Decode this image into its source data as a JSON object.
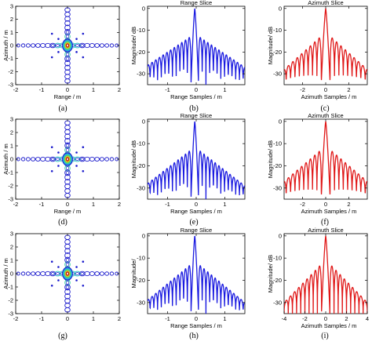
{
  "chart_data": [
    {
      "id": "a",
      "caption": "(a)",
      "type": "heatmap",
      "kind": "contour",
      "title": "",
      "xlabel": "Range / m",
      "ylabel": "Azimuth / m",
      "xticks": [
        "-2",
        "-1",
        "0",
        "1",
        "2"
      ],
      "yticks": [
        "3",
        "2",
        "1",
        "0",
        "-1",
        "-2",
        "-3"
      ],
      "xlim": [
        -2,
        2
      ],
      "ylim": [
        -3,
        3
      ]
    },
    {
      "id": "b",
      "caption": "(b)",
      "type": "line",
      "title": "Range Slice",
      "xlabel": "Range Samples / m",
      "ylabel": "Magnitude/ dB",
      "xticks": [
        "-1",
        "0",
        "1"
      ],
      "yticks": [
        "0",
        "-10",
        "-20",
        "-30"
      ],
      "xlim": [
        -1.7,
        1.7
      ],
      "ylim": [
        -35,
        1
      ],
      "series": [
        {
          "color": "#1a1ae0",
          "peak_x": -0.05,
          "lobe_spacing": 0.13,
          "envelope_db_at_edge": -27,
          "floor_db": -35
        }
      ]
    },
    {
      "id": "c",
      "caption": "(c)",
      "type": "line",
      "title": "Azimuth Slice",
      "xlabel": "Azimuth Samples / m",
      "ylabel": "Magnitude/ dB",
      "xticks": [
        "-2",
        "0",
        "2"
      ],
      "yticks": [
        "0",
        "-10",
        "-20",
        "-30"
      ],
      "xlim": [
        -3.6,
        3.6
      ],
      "ylim": [
        -35,
        1
      ],
      "series": [
        {
          "color": "#e01818",
          "peak_x": 0,
          "lobe_spacing": 0.38,
          "envelope_db_at_edge": -28,
          "floor_db": -35
        }
      ]
    },
    {
      "id": "d",
      "caption": "(d)",
      "type": "heatmap",
      "kind": "contour",
      "title": "",
      "xlabel": "Range / m",
      "ylabel": "Azimuth / m",
      "xticks": [
        "-2",
        "-1",
        "0",
        "1",
        "2"
      ],
      "yticks": [
        "3",
        "2",
        "1",
        "0",
        "-1",
        "-2",
        "-3"
      ],
      "xlim": [
        -2,
        2
      ],
      "ylim": [
        -3,
        3
      ]
    },
    {
      "id": "e",
      "caption": "(e)",
      "type": "line",
      "title": "Range Slice",
      "xlabel": "Range Samples / m",
      "ylabel": "Magnitude/ dB",
      "xticks": [
        "-1",
        "0",
        "1"
      ],
      "yticks": [
        "0",
        "-10",
        "-20",
        "-30"
      ],
      "xlim": [
        -1.7,
        1.7
      ],
      "ylim": [
        -35,
        1
      ],
      "series": [
        {
          "color": "#1a1ae0",
          "peak_x": -0.05,
          "lobe_spacing": 0.13,
          "envelope_db_at_edge": -29,
          "floor_db": -35
        }
      ]
    },
    {
      "id": "f",
      "caption": "(f)",
      "type": "line",
      "title": "Azimuth Slice",
      "xlabel": "Azimuth Samples / m",
      "ylabel": "Magnitude/ dB",
      "xticks": [
        "-2",
        "0",
        "2"
      ],
      "yticks": [
        "0",
        "-10",
        "-20",
        "-30"
      ],
      "xlim": [
        -3.6,
        3.6
      ],
      "ylim": [
        -35,
        1
      ],
      "series": [
        {
          "color": "#e01818",
          "peak_x": 0,
          "lobe_spacing": 0.38,
          "envelope_db_at_edge": -27,
          "floor_db": -35
        }
      ]
    },
    {
      "id": "g",
      "caption": "(g)",
      "type": "heatmap",
      "kind": "contour",
      "title": "",
      "xlabel": "",
      "ylabel": "Azimuth / m",
      "xticks": [
        "-2",
        "-1",
        "0",
        "1",
        "2"
      ],
      "yticks": [
        "3",
        "2",
        "1",
        "0",
        "-1",
        "-2",
        "-3"
      ],
      "xlim": [
        -2,
        2
      ],
      "ylim": [
        -3,
        3
      ]
    },
    {
      "id": "h",
      "caption": "(h)",
      "type": "line",
      "title": "Range Slice",
      "xlabel": "Range Samples / m",
      "ylabel": "Magnitude/",
      "xticks": [
        "-1",
        "0",
        "1"
      ],
      "yticks": [
        "0",
        "-10",
        "-20",
        "-30"
      ],
      "xlim": [
        -1.7,
        1.7
      ],
      "ylim": [
        -35,
        1
      ],
      "series": [
        {
          "color": "#1a1ae0",
          "peak_x": -0.05,
          "lobe_spacing": 0.13,
          "envelope_db_at_edge": -30,
          "floor_db": -35
        }
      ]
    },
    {
      "id": "i",
      "caption": "(i)",
      "type": "line",
      "title": "Azimuth Slice",
      "xlabel": "Azimuth Samples / m",
      "ylabel": "Magnitude/ dB",
      "xticks": [
        "-4",
        "-2",
        "0",
        "2",
        "4"
      ],
      "yticks": [
        "0",
        "-10",
        "-20",
        "-30"
      ],
      "xlim": [
        -4,
        4
      ],
      "ylim": [
        -35,
        1
      ],
      "series": [
        {
          "color": "#e01818",
          "peak_x": 0,
          "lobe_spacing": 0.4,
          "envelope_db_at_edge": -30,
          "floor_db": -35
        }
      ]
    }
  ]
}
